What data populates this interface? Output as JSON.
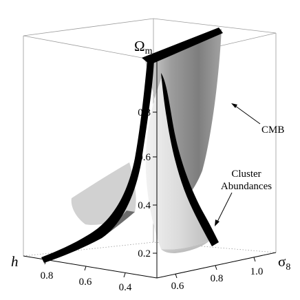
{
  "chart_data": {
    "type": "surface3d",
    "title": "",
    "axes": {
      "z": {
        "label": "Ω",
        "label_sub": "m",
        "ticks": [
          "0.2",
          "0.4",
          "0.6",
          "0.8"
        ]
      },
      "x": {
        "label": "h",
        "ticks": [
          "0.8",
          "0.6",
          "0.4"
        ]
      },
      "y": {
        "label": "σ",
        "label_sub": "8",
        "ticks": [
          "0.6",
          "0.8",
          "1.0"
        ]
      }
    },
    "surfaces": [
      {
        "name": "CMB",
        "color": "#8a8a8a"
      },
      {
        "name": "Cluster Abundances",
        "color": "#d6d6d6"
      }
    ],
    "annotations": [
      {
        "text": "CMB"
      },
      {
        "text_line1": "Cluster",
        "text_line2": "Abundances"
      }
    ],
    "colors": {
      "highlight": "#000000",
      "cmb": "#8a8a8a",
      "clusters": "#dcdcdc"
    }
  }
}
